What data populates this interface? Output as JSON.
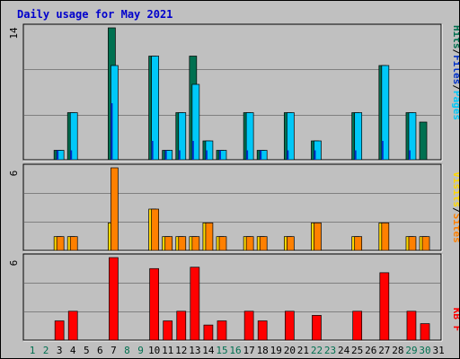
{
  "title": "Daily usage for May 2021",
  "colors": {
    "background": "#c0c0c0",
    "title": "#0000cc",
    "hits": "#007050",
    "files": "#00c8f8",
    "pages": "#0030c8",
    "visits": "#ff8000",
    "sites": "#ffd800",
    "kbytes": "#ff0000",
    "weekday_label": "#000000",
    "weekend_label": "#007050",
    "gridline": "#808080"
  },
  "legends": {
    "top": [
      {
        "text": "Hits",
        "color_key": "hits"
      },
      {
        "text": "/",
        "color_key": "weekday_label"
      },
      {
        "text": "Files",
        "color_key": "pages"
      },
      {
        "text": "/",
        "color_key": "weekday_label"
      },
      {
        "text": "Pages",
        "color_key": "files"
      }
    ],
    "middle": [
      {
        "text": "Visits",
        "color_key": "sites"
      },
      {
        "text": "/",
        "color_key": "weekday_label"
      },
      {
        "text": "Sites",
        "color_key": "visits"
      }
    ],
    "bottom": [
      {
        "text": "KB F",
        "color_key": "kbytes"
      }
    ]
  },
  "chart_data": {
    "type": "bar",
    "title": "Daily usage for May 2021",
    "grid": true,
    "days": [
      "1",
      "2",
      "3",
      "4",
      "5",
      "6",
      "7",
      "8",
      "9",
      "10",
      "11",
      "12",
      "13",
      "14",
      "15",
      "16",
      "17",
      "18",
      "19",
      "20",
      "21",
      "22",
      "23",
      "24",
      "25",
      "26",
      "27",
      "28",
      "29",
      "30",
      "31"
    ],
    "weekend_days": [
      "1",
      "2",
      "8",
      "9",
      "15",
      "16",
      "22",
      "23",
      "29",
      "30"
    ],
    "panels": [
      {
        "name": "hits-files-pages",
        "ymax_label": "14",
        "ymax": 14,
        "series": [
          {
            "name": "Hits",
            "color_key": "hits",
            "values": [
              0,
              0,
              1,
              5,
              0,
              0,
              14,
              0,
              0,
              11,
              1,
              5,
              11,
              2,
              1,
              0,
              5,
              1,
              0,
              5,
              0,
              2,
              0,
              0,
              5,
              0,
              10,
              0,
              5,
              4,
              0
            ]
          },
          {
            "name": "Files",
            "color_key": "files",
            "values": [
              0,
              0,
              1,
              5,
              0,
              0,
              10,
              0,
              0,
              11,
              1,
              5,
              8,
              2,
              1,
              0,
              5,
              1,
              0,
              5,
              0,
              2,
              0,
              0,
              5,
              0,
              10,
              0,
              5,
              0,
              0
            ]
          },
          {
            "name": "Pages",
            "color_key": "pages",
            "values": [
              0,
              0,
              1,
              1,
              0,
              0,
              6,
              0,
              0,
              2,
              1,
              1,
              2,
              1,
              1,
              0,
              1,
              1,
              0,
              1,
              0,
              1,
              0,
              0,
              1,
              0,
              2,
              0,
              1,
              0,
              0
            ]
          }
        ]
      },
      {
        "name": "visits-sites",
        "ymax_label": "6",
        "ymax": 6,
        "series": [
          {
            "name": "Visits",
            "color_key": "sites",
            "values": [
              0,
              0,
              1,
              1,
              0,
              0,
              2,
              0,
              0,
              3,
              1,
              1,
              1,
              2,
              1,
              0,
              1,
              1,
              0,
              1,
              0,
              2,
              0,
              0,
              1,
              0,
              2,
              0,
              1,
              1,
              0
            ]
          },
          {
            "name": "Sites",
            "color_key": "visits",
            "values": [
              0,
              0,
              1,
              1,
              0,
              0,
              6,
              0,
              0,
              3,
              1,
              1,
              1,
              2,
              1,
              0,
              1,
              1,
              0,
              1,
              0,
              2,
              0,
              0,
              1,
              0,
              2,
              0,
              1,
              1,
              0
            ]
          }
        ]
      },
      {
        "name": "kbytes",
        "ymax_label": "6",
        "ymax": 6,
        "series": [
          {
            "name": "KBytes",
            "color_key": "kbytes",
            "values": [
              0,
              0,
              1.4,
              2.1,
              0,
              0,
              6,
              0,
              0,
              5.2,
              1.4,
              2.1,
              5.3,
              1.1,
              1.4,
              0,
              2.1,
              1.4,
              0,
              2.1,
              0,
              1.8,
              0,
              0,
              2.1,
              0,
              4.9,
              0,
              2.1,
              1.2,
              0
            ]
          }
        ]
      }
    ]
  }
}
